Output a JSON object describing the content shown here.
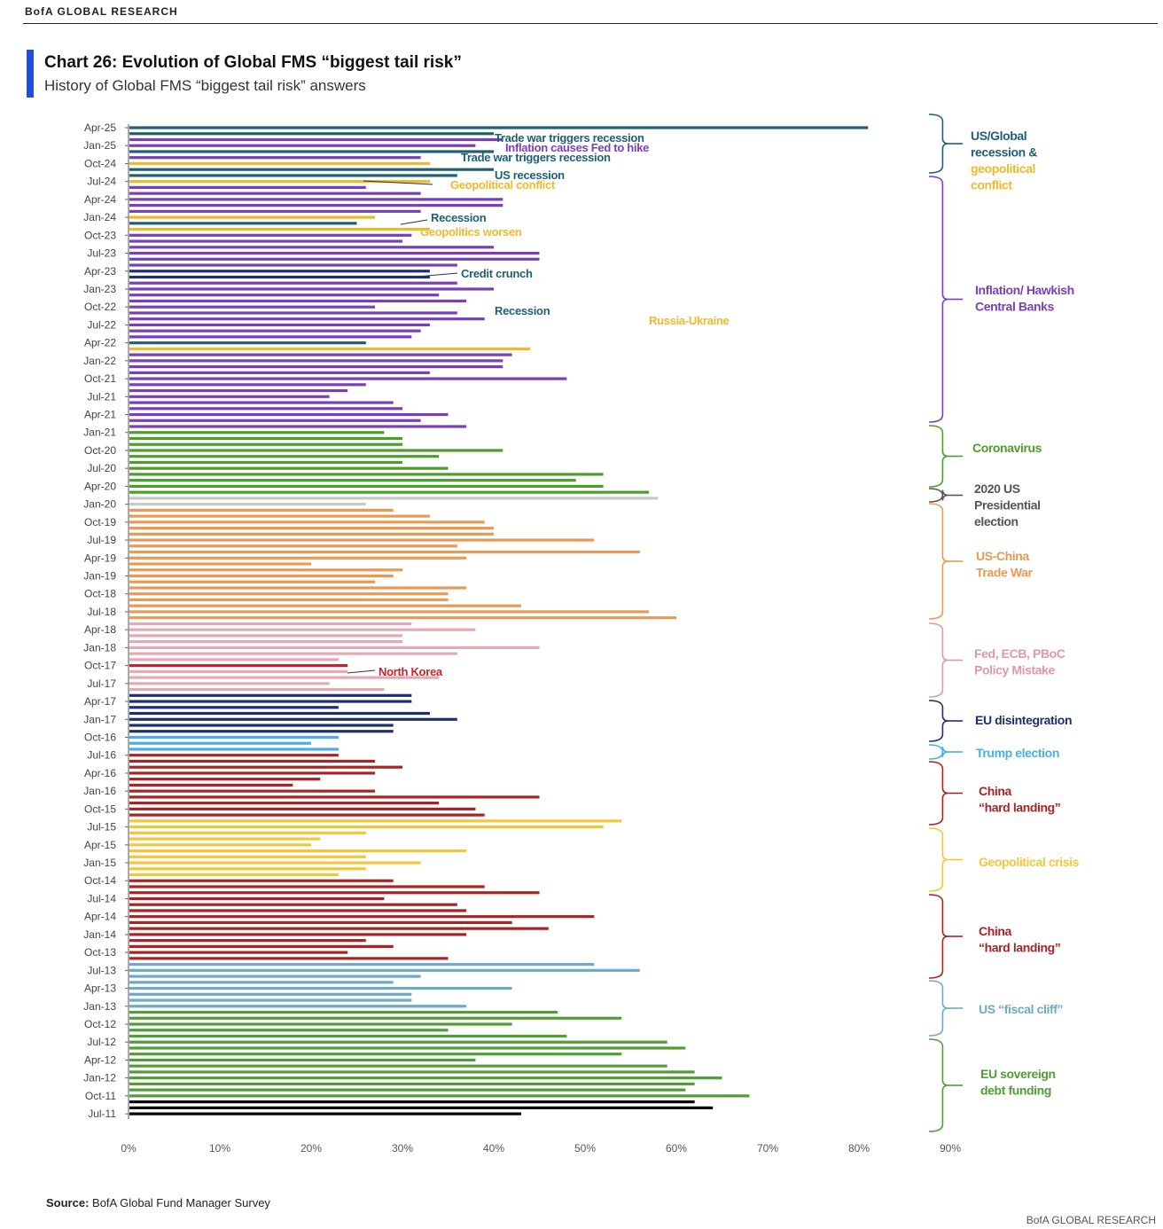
{
  "header": {
    "brand": "BofA GLOBAL RESEARCH"
  },
  "title": "Chart 26: Evolution of Global FMS “biggest tail risk”",
  "subtitle": "History of Global FMS “biggest tail risk” answers",
  "source_label": "Source:",
  "source_text": "BofA Global Fund Manager Survey",
  "footer": "BofA GLOBAL RESEARCH",
  "colors": {
    "us_global_recession": "#215f75",
    "geopolitical": "#f0b92c",
    "inflation": "#7b3fb5",
    "credit_crunch": "#1e2f6e",
    "covid": "#4c9e2c",
    "us_election_2020": "#c9c9c9",
    "trade_war": "#e79a55",
    "policy_mistake": "#e2aab2",
    "north_korea": "#c8232c",
    "eu_disintegration": "#1e2f6e",
    "trump_election": "#4aafe0",
    "china_hard_landing": "#a82424",
    "geopolitical_crisis": "#f2c63a",
    "us_fiscal_cliff": "#6eaac8",
    "eu_sovereign": "#4e9e35"
  },
  "chart_data": {
    "type": "bar",
    "orientation": "horizontal",
    "title": "Chart 26: Evolution of Global FMS “biggest tail risk”",
    "subtitle": "History of Global FMS “biggest tail risk” answers",
    "xlim": [
      0,
      90
    ],
    "xticks": [
      "0%",
      "10%",
      "20%",
      "30%",
      "40%",
      "50%",
      "60%",
      "70%",
      "80%",
      "90%"
    ],
    "ytick_labels": [
      "Apr-25",
      "Jan-25",
      "Oct-24",
      "Jul-24",
      "Apr-24",
      "Jan-24",
      "Oct-23",
      "Jul-23",
      "Apr-23",
      "Jan-23",
      "Oct-22",
      "Jul-22",
      "Apr-22",
      "Jan-22",
      "Oct-21",
      "Jul-21",
      "Apr-21",
      "Jan-21",
      "Oct-20",
      "Jul-20",
      "Apr-20",
      "Jan-20",
      "Oct-19",
      "Jul-19",
      "Apr-19",
      "Jan-19",
      "Oct-18",
      "Jul-18",
      "Apr-18",
      "Jan-18",
      "Oct-17",
      "Jul-17",
      "Apr-17",
      "Jan-17",
      "Oct-16",
      "Jul-16",
      "Apr-16",
      "Jan-16",
      "Oct-15",
      "Jul-15",
      "Apr-15",
      "Jan-15",
      "Oct-14",
      "Jul-14",
      "Apr-14",
      "Jan-14",
      "Oct-13",
      "Jul-13",
      "Apr-13",
      "Jan-13",
      "Oct-12",
      "Jul-12",
      "Apr-12",
      "Jan-12",
      "Oct-11",
      "Jul-11"
    ],
    "months_newest_first": [
      "Apr-25",
      "Mar-25",
      "Feb-25",
      "Jan-25",
      "Dec-24",
      "Nov-24",
      "Oct-24",
      "Sep-24",
      "Aug-24",
      "Jul-24",
      "Jun-24",
      "May-24",
      "Apr-24",
      "Mar-24",
      "Feb-24",
      "Jan-24",
      "Dec-23",
      "Nov-23",
      "Oct-23",
      "Sep-23",
      "Aug-23",
      "Jul-23",
      "Jun-23",
      "May-23",
      "Apr-23",
      "Mar-23",
      "Feb-23",
      "Jan-23",
      "Dec-22",
      "Nov-22",
      "Oct-22",
      "Sep-22",
      "Aug-22",
      "Jul-22",
      "Jun-22",
      "May-22",
      "Apr-22",
      "Mar-22",
      "Feb-22",
      "Jan-22",
      "Dec-21",
      "Nov-21",
      "Oct-21",
      "Sep-21",
      "Aug-21",
      "Jul-21",
      "Jun-21",
      "May-21",
      "Apr-21",
      "Mar-21",
      "Feb-21",
      "Jan-21",
      "Dec-20",
      "Nov-20",
      "Oct-20",
      "Sep-20",
      "Aug-20",
      "Jul-20",
      "Jun-20",
      "May-20",
      "Apr-20",
      "Mar-20",
      "Feb-20",
      "Jan-20",
      "Dec-19",
      "Nov-19",
      "Oct-19",
      "Sep-19",
      "Aug-19",
      "Jul-19",
      "Jun-19",
      "May-19",
      "Apr-19",
      "Mar-19",
      "Feb-19",
      "Jan-19",
      "Dec-18",
      "Nov-18",
      "Oct-18",
      "Sep-18",
      "Aug-18",
      "Jul-18",
      "Jun-18",
      "May-18",
      "Apr-18",
      "Mar-18",
      "Feb-18",
      "Jan-18",
      "Dec-17",
      "Nov-17",
      "Oct-17",
      "Sep-17",
      "Aug-17",
      "Jul-17",
      "Jun-17",
      "May-17",
      "Apr-17",
      "Mar-17",
      "Feb-17",
      "Jan-17",
      "Dec-16",
      "Nov-16",
      "Oct-16",
      "Sep-16",
      "Aug-16",
      "Jul-16",
      "Jun-16",
      "May-16",
      "Apr-16",
      "Mar-16",
      "Feb-16",
      "Jan-16",
      "Dec-15",
      "Nov-15",
      "Oct-15",
      "Sep-15",
      "Aug-15",
      "Jul-15",
      "Jun-15",
      "May-15",
      "Apr-15",
      "Mar-15",
      "Feb-15",
      "Jan-15",
      "Dec-14",
      "Nov-14",
      "Oct-14",
      "Sep-14",
      "Aug-14",
      "Jul-14",
      "Jun-14",
      "May-14",
      "Apr-14",
      "Mar-14",
      "Feb-14",
      "Jan-14",
      "Dec-13",
      "Nov-13",
      "Oct-13",
      "Sep-13",
      "Aug-13",
      "Jul-13",
      "Jun-13",
      "May-13",
      "Apr-13",
      "Mar-13",
      "Feb-13",
      "Jan-13",
      "Dec-12",
      "Nov-12",
      "Oct-12",
      "Sep-12",
      "Aug-12",
      "Jul-12",
      "Jun-12",
      "May-12",
      "Apr-12",
      "Mar-12",
      "Feb-12",
      "Jan-12",
      "Dec-11",
      "Nov-11",
      "Oct-11",
      "Sep-11",
      "Aug-11",
      "Jul-11"
    ],
    "values_newest_first": [
      81,
      40,
      41,
      38,
      40,
      32,
      33,
      40,
      36,
      33,
      26,
      32,
      41,
      41,
      32,
      27,
      25,
      33,
      31,
      30,
      40,
      45,
      45,
      36,
      33,
      33,
      36,
      40,
      34,
      37,
      27,
      36,
      39,
      33,
      32,
      31,
      26,
      44,
      42,
      41,
      41,
      33,
      48,
      26,
      24,
      22,
      29,
      30,
      35,
      32,
      37,
      28,
      30,
      30,
      41,
      34,
      30,
      35,
      52,
      49,
      52,
      57,
      58,
      26,
      29,
      33,
      39,
      40,
      40,
      51,
      36,
      56,
      37,
      20,
      30,
      29,
      27,
      37,
      35,
      35,
      43,
      57,
      60,
      31,
      38,
      30,
      30,
      45,
      36,
      23,
      24,
      24,
      34,
      22,
      28,
      31,
      31,
      23,
      33,
      36,
      29,
      29,
      23,
      20,
      23,
      23,
      27,
      30,
      27,
      21,
      18,
      27,
      45,
      34,
      38,
      39,
      54,
      52,
      26,
      21,
      20,
      37,
      26,
      32,
      26,
      23,
      29,
      39,
      45,
      28,
      36,
      37,
      51,
      42,
      46,
      37,
      26,
      29,
      24,
      35,
      51,
      56,
      32,
      29,
      42,
      31,
      31,
      37,
      47,
      54,
      42,
      35,
      48,
      59,
      61,
      54,
      38,
      59,
      62,
      65,
      62,
      61,
      68,
      62,
      64,
      43
    ],
    "colors_newest_first": [
      "#215f75",
      "#215f75",
      "#7b3fb5",
      "#7b3fb5",
      "#215f75",
      "#7b3fb5",
      "#f0b92c",
      "#215f75",
      "#215f75",
      "#f0b92c",
      "#7b3fb5",
      "#7b3fb5",
      "#7b3fb5",
      "#7b3fb5",
      "#7b3fb5",
      "#f0b92c",
      "#215f75",
      "#f0b92c",
      "#7b3fb5",
      "#7b3fb5",
      "#7b3fb5",
      "#7b3fb5",
      "#7b3fb5",
      "#7b3fb5",
      "#1e2f6e",
      "#1e2f6e",
      "#7b3fb5",
      "#7b3fb5",
      "#7b3fb5",
      "#7b3fb5",
      "#7b3fb5",
      "#7b3fb5",
      "#7b3fb5",
      "#7b3fb5",
      "#7b3fb5",
      "#7b3fb5",
      "#215f75",
      "#f0b92c",
      "#7b3fb5",
      "#7b3fb5",
      "#7b3fb5",
      "#7b3fb5",
      "#7b3fb5",
      "#7b3fb5",
      "#7b3fb5",
      "#7b3fb5",
      "#7b3fb5",
      "#7b3fb5",
      "#7b3fb5",
      "#7b3fb5",
      "#7b3fb5",
      "#4c9e2c",
      "#4c9e2c",
      "#4c9e2c",
      "#4c9e2c",
      "#4c9e2c",
      "#4c9e2c",
      "#4c9e2c",
      "#4c9e2c",
      "#4c9e2c",
      "#4c9e2c",
      "#4c9e2c",
      "#c9c9c9",
      "#c9c9c9",
      "#e79a55",
      "#e79a55",
      "#e79a55",
      "#e79a55",
      "#e79a55",
      "#e79a55",
      "#e79a55",
      "#e79a55",
      "#e79a55",
      "#e79a55",
      "#e79a55",
      "#e79a55",
      "#e79a55",
      "#e79a55",
      "#e79a55",
      "#e79a55",
      "#e79a55",
      "#e79a55",
      "#e79a55",
      "#e2aab2",
      "#e2aab2",
      "#e2aab2",
      "#e2aab2",
      "#e2aab2",
      "#e2aab2",
      "#e2aab2",
      "#c8232c",
      "#e2aab2",
      "#e2aab2",
      "#e2aab2",
      "#e2aab2",
      "#1e2f6e",
      "#1e2f6e",
      "#1e2f6e",
      "#1e2f6e",
      "#1e2f6e",
      "#1e2f6e",
      "#1e2f6e",
      "#4aafe0",
      "#4aafe0",
      "#4aafe0",
      "#a82424",
      "#a82424",
      "#a82424",
      "#a82424",
      "#a82424",
      "#a82424",
      "#a82424",
      "#a82424",
      "#a82424",
      "#a82424",
      "#a82424",
      "#f2c63a",
      "#f2c63a",
      "#f2c63a",
      "#f2c63a",
      "#f2c63a",
      "#f2c63a",
      "#f2c63a",
      "#f2c63a",
      "#f2c63a",
      "#f2c63a",
      "#a82424",
      "#a82424",
      "#a82424",
      "#a82424",
      "#a82424",
      "#a82424",
      "#a82424",
      "#a82424",
      "#a82424",
      "#a82424",
      "#a82424",
      "#a82424",
      "#a82424",
      "#a82424",
      "#6eaac8",
      "#6eaac8",
      "#6eaac8",
      "#6eaac8",
      "#6eaac8",
      "#6eaac8",
      "#6eaac8",
      "#6eaac8",
      "#4e9e35",
      "#4e9e35",
      "#4e9e35",
      "#4e9e35",
      "#4e9e35",
      "#4e9e35",
      "#4e9e35",
      "#4e9e35",
      "#4e9e35",
      "#4e9e35",
      "#4e9e35",
      "#4e9e35",
      "#4e9e35",
      "#4e9e35",
      "#4e9e35"
    ],
    "annotations": [
      {
        "text": "Trade war triggers recession",
        "color": "#215f75"
      },
      {
        "text": "Inflation causes Fed to hike",
        "color": "#7b3fb5"
      },
      {
        "text": "Trade war triggers recession",
        "color": "#215f75"
      },
      {
        "text": "US recession",
        "color": "#215f75"
      },
      {
        "text": "Geopolitical conflict",
        "color": "#f0b92c"
      },
      {
        "text": "Recession",
        "color": "#215f75"
      },
      {
        "text": "Geopolitics worsen",
        "color": "#f0b92c"
      },
      {
        "text": "Credit crunch",
        "color": "#215f75"
      },
      {
        "text": "Recession",
        "color": "#215f75"
      },
      {
        "text": "Russia-Ukraine",
        "color": "#f0b92c"
      },
      {
        "text": "North Korea",
        "color": "#c8232c"
      }
    ],
    "legend_groups": [
      {
        "lines": [
          {
            "t": "US/Global",
            "c": "#215f75"
          },
          {
            "t": "recession &",
            "c": "#215f75"
          },
          {
            "t": "geopolitical",
            "c": "#f0b92c"
          },
          {
            "t": "conflict",
            "c": "#f0b92c"
          }
        ],
        "color": "#215f75"
      },
      {
        "lines": [
          {
            "t": "Inflation/ Hawkish",
            "c": "#7b3fb5"
          },
          {
            "t": "Central Banks",
            "c": "#7b3fb5"
          }
        ],
        "color": "#7b3fb5"
      },
      {
        "lines": [
          {
            "t": "Coronavirus",
            "c": "#4c9e2c"
          }
        ],
        "color": "#4c9e2c"
      },
      {
        "lines": [
          {
            "t": "2020 US",
            "c": "#555555"
          },
          {
            "t": "Presidential",
            "c": "#555555"
          },
          {
            "t": "election",
            "c": "#555555"
          }
        ],
        "color": "#555555"
      },
      {
        "lines": [
          {
            "t": "US-China",
            "c": "#e79a55"
          },
          {
            "t": "Trade War",
            "c": "#e79a55"
          }
        ],
        "color": "#e79a55"
      },
      {
        "lines": [
          {
            "t": "Fed, ECB, PBoC",
            "c": "#dc9aa5"
          },
          {
            "t": "Policy Mistake",
            "c": "#dc9aa5"
          }
        ],
        "color": "#dc9aa5"
      },
      {
        "lines": [
          {
            "t": "EU disintegration",
            "c": "#1e2f6e"
          }
        ],
        "color": "#1e2f6e"
      },
      {
        "lines": [
          {
            "t": "Trump election",
            "c": "#4aafe0"
          }
        ],
        "color": "#4aafe0"
      },
      {
        "lines": [
          {
            "t": "China",
            "c": "#a82424"
          },
          {
            "t": "“hard landing”",
            "c": "#a82424"
          }
        ],
        "color": "#a82424"
      },
      {
        "lines": [
          {
            "t": "Geopolitical crisis",
            "c": "#f2c63a"
          }
        ],
        "color": "#f2c63a"
      },
      {
        "lines": [
          {
            "t": "China",
            "c": "#a82424"
          },
          {
            "t": "“hard landing”",
            "c": "#a82424"
          }
        ],
        "color": "#a82424"
      },
      {
        "lines": [
          {
            "t": "US “fiscal cliff”",
            "c": "#6eaac8"
          }
        ],
        "color": "#6eaac8"
      },
      {
        "lines": [
          {
            "t": "EU sovereign",
            "c": "#4e9e35"
          },
          {
            "t": "debt funding",
            "c": "#4e9e35"
          }
        ],
        "color": "#4e9e35"
      }
    ]
  }
}
